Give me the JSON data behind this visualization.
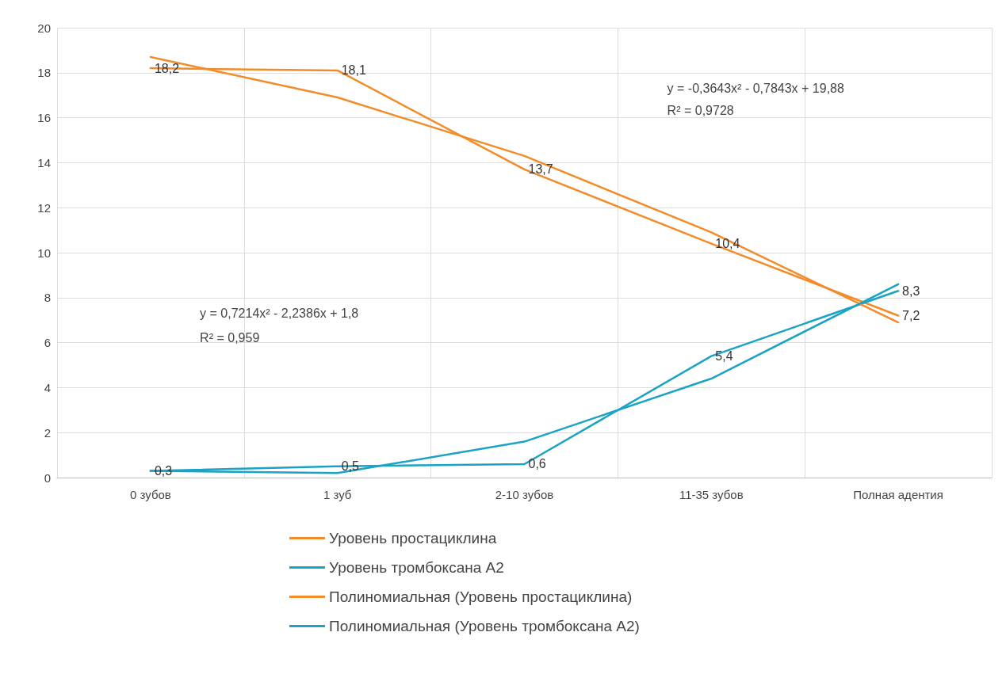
{
  "chart_data": {
    "type": "line",
    "categories": [
      "0 зубов",
      "1 зуб",
      "2-10 зубов",
      "11-35 зубов",
      "Полная адентия"
    ],
    "series": [
      {
        "name": "Уровень простациклина",
        "color": "#f28c28",
        "values": [
          18.2,
          18.1,
          13.7,
          10.4,
          7.2
        ],
        "value_labels": [
          "18,2",
          "18,1",
          "13,7",
          "10,4",
          "7,2"
        ]
      },
      {
        "name": "Уровень тромбоксана А2",
        "color": "#1ba3c6",
        "values": [
          0.3,
          0.5,
          0.6,
          5.4,
          8.3
        ],
        "value_labels": [
          "0,3",
          "0,5",
          "0,6",
          "5,4",
          "8,3"
        ]
      },
      {
        "name": "Полиномиальная (Уровень простациклина)",
        "color": "#f28c28",
        "values": [
          18.7,
          16.9,
          14.3,
          10.9,
          6.9
        ]
      },
      {
        "name": "Полиномиальная (Уровень тромбоксана А2)",
        "color": "#1ba3c6",
        "values": [
          0.3,
          0.2,
          1.6,
          4.4,
          8.6
        ]
      }
    ],
    "annotations": [
      "y = -0,3643x² - 0,7843x + 19,88",
      "R² = 0,9728",
      "y = 0,7214x² - 2,2386x + 1,8",
      "R² = 0,959"
    ],
    "ylim": [
      0,
      20
    ],
    "yticks": [
      0,
      2,
      4,
      6,
      8,
      10,
      12,
      14,
      16,
      18,
      20
    ],
    "grid": true,
    "legend": "bottom",
    "marker": "none",
    "line_style": "solid"
  }
}
